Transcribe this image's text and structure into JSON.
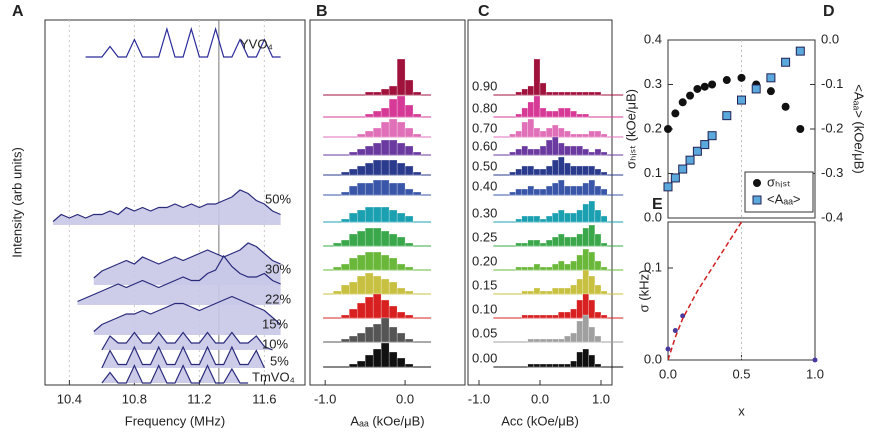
{
  "chart_data": [
    {
      "type": "line",
      "label": "A",
      "xlabel": "Frequency (MHz)",
      "ylabel": "Intensity (arb units)",
      "xlim": [
        10.25,
        11.85
      ],
      "xticks": [
        10.4,
        10.8,
        11.2,
        11.6
      ],
      "grid": true,
      "vline": 11.32,
      "fill": "#c8c8e8",
      "x": [
        10.3,
        10.35,
        10.4,
        10.45,
        10.5,
        10.55,
        10.6,
        10.65,
        10.7,
        10.75,
        10.8,
        10.85,
        10.9,
        10.95,
        11.0,
        11.05,
        11.1,
        11.15,
        11.2,
        11.25,
        11.3,
        11.35,
        11.4,
        11.45,
        11.5,
        11.55,
        11.6,
        11.65,
        11.7
      ],
      "series": [
        {
          "name": "YVO₄",
          "color": "#2a2a9a",
          "values": [
            null,
            null,
            null,
            null,
            0,
            0,
            0,
            3,
            0,
            0,
            5,
            0,
            0,
            0,
            8,
            0,
            0,
            8,
            0,
            0,
            8,
            0,
            0,
            5,
            0,
            0,
            5,
            0,
            0
          ]
        },
        {
          "name": "50%",
          "color": "#2a2a7a",
          "values": [
            1,
            3,
            2,
            3,
            2,
            3,
            3,
            4,
            3,
            5,
            4,
            5,
            4,
            5,
            5,
            6,
            5,
            6,
            5,
            6,
            6,
            7,
            8,
            10,
            9,
            7,
            6,
            4,
            3
          ]
        },
        {
          "name": "30%",
          "color": "#2a2a7a",
          "values": [
            null,
            null,
            null,
            null,
            null,
            2,
            4,
            5,
            6,
            7,
            6,
            8,
            7,
            6,
            7,
            8,
            7,
            8,
            9,
            10,
            9,
            8,
            9,
            10,
            12,
            11,
            9,
            7,
            6
          ]
        },
        {
          "name": "22%",
          "color": "#2a2a7a",
          "values": [
            null,
            null,
            null,
            1,
            2,
            3,
            4,
            5,
            6,
            5,
            6,
            7,
            6,
            5,
            6,
            7,
            8,
            7,
            7,
            9,
            10,
            14,
            11,
            9,
            8,
            8,
            9,
            7,
            6
          ]
        },
        {
          "name": "15%",
          "color": "#2a2a7a",
          "values": [
            null,
            null,
            null,
            null,
            null,
            1,
            3,
            4,
            5,
            6,
            6,
            7,
            6,
            7,
            8,
            9,
            9,
            8,
            7,
            8,
            9,
            10,
            11,
            10,
            9,
            8,
            7,
            5,
            3
          ]
        },
        {
          "name": "10%",
          "color": "#2a2a7a",
          "values": [
            null,
            null,
            null,
            null,
            null,
            null,
            0,
            4,
            2,
            2,
            5,
            2,
            2,
            5,
            2,
            2,
            5,
            2,
            2,
            5,
            2,
            2,
            5,
            2,
            2,
            4,
            1,
            0,
            null
          ]
        },
        {
          "name": "5%",
          "color": "#2a2a7a",
          "values": [
            null,
            null,
            null,
            null,
            null,
            null,
            0,
            5,
            1,
            1,
            6,
            1,
            1,
            6,
            1,
            1,
            6,
            1,
            1,
            6,
            1,
            1,
            6,
            1,
            1,
            5,
            0,
            null,
            null
          ]
        },
        {
          "name": "TmVO₄",
          "color": "#2a2a7a",
          "values": [
            null,
            null,
            null,
            null,
            null,
            null,
            0,
            3,
            0,
            0,
            5,
            0,
            0,
            5,
            0,
            0,
            5,
            0,
            0,
            5,
            0,
            0,
            4,
            0,
            0,
            null,
            null,
            null,
            null
          ]
        }
      ]
    },
    {
      "type": "histogram",
      "label": "B",
      "xlabel": "Aₐₐ (kOe/μB)",
      "xlim": [
        -1.19,
        0.75
      ],
      "xticks": [
        {
          "value": -1,
          "label": "-1.0"
        },
        {
          "value": 0,
          "label": "0.0"
        }
      ],
      "bins": [
        -0.9,
        -0.8,
        -0.7,
        -0.6,
        -0.5,
        -0.4,
        -0.3,
        -0.2,
        -0.1,
        0,
        0.1,
        0.2
      ],
      "series": [
        {
          "color": "#a0123c",
          "values": [
            0,
            0,
            0,
            0,
            1,
            1,
            2,
            3,
            12,
            5,
            1
          ]
        },
        {
          "color": "#d63a96",
          "values": [
            0,
            0,
            0,
            0,
            1,
            2,
            3,
            6,
            7,
            4,
            1
          ]
        },
        {
          "color": "#e070b8",
          "values": [
            0,
            0,
            0,
            1,
            2,
            3,
            5,
            6,
            5,
            3,
            1
          ]
        },
        {
          "color": "#6a3aa0",
          "values": [
            0,
            0,
            1,
            2,
            3,
            4,
            5,
            5,
            4,
            3,
            1
          ]
        },
        {
          "color": "#2a3a8c",
          "values": [
            0,
            1,
            2,
            3,
            4,
            5,
            5,
            5,
            4,
            3,
            1
          ]
        },
        {
          "color": "#3a56a8",
          "values": [
            0,
            1,
            3,
            4,
            4,
            5,
            5,
            4,
            4,
            2,
            1
          ]
        },
        {
          "color": "#1aa0b0",
          "values": [
            0,
            1,
            3,
            4,
            5,
            5,
            5,
            4,
            3,
            2,
            0
          ]
        },
        {
          "color": "#3aa84a",
          "values": [
            1,
            2,
            4,
            5,
            6,
            6,
            5,
            4,
            3,
            1,
            0
          ]
        },
        {
          "color": "#6ab83a",
          "values": [
            1,
            2,
            4,
            5,
            6,
            6,
            5,
            4,
            2,
            1,
            0
          ]
        },
        {
          "color": "#c8c040",
          "values": [
            1,
            3,
            4,
            6,
            7,
            6,
            5,
            4,
            2,
            1,
            0
          ]
        },
        {
          "color": "#d82020",
          "values": [
            0,
            1,
            3,
            5,
            7,
            8,
            6,
            4,
            2,
            1,
            0
          ]
        },
        {
          "color": "#555555",
          "values": [
            0,
            1,
            2,
            3,
            5,
            6,
            8,
            5,
            3,
            1,
            0
          ]
        },
        {
          "color": "#111111",
          "values": [
            0,
            0,
            1,
            2,
            4,
            6,
            8,
            5,
            3,
            1,
            0
          ]
        }
      ]
    },
    {
      "type": "histogram",
      "label": "C",
      "xlabel": "Acc (kOe/μB)",
      "xlim": [
        -1.18,
        1.18
      ],
      "xticks": [
        {
          "value": -1,
          "label": "-1.0"
        },
        {
          "value": 0,
          "label": "0.0"
        },
        {
          "value": 1,
          "label": "1.0"
        }
      ],
      "bins": [
        -0.6,
        -0.5,
        -0.4,
        -0.3,
        -0.2,
        -0.1,
        0,
        0.1,
        0.2,
        0.3,
        0.4,
        0.5,
        0.6,
        0.7,
        0.8,
        0.9,
        1.0,
        1.1,
        1.2
      ],
      "series": [
        {
          "name": "0.90",
          "color": "#a0123c",
          "values": [
            0,
            0,
            1,
            2,
            3,
            12,
            4,
            1,
            1,
            1,
            1,
            1,
            1,
            1,
            1,
            1,
            0,
            0
          ]
        },
        {
          "name": "0.80",
          "color": "#d63a96",
          "values": [
            0,
            0,
            1,
            3,
            5,
            7,
            3,
            2,
            2,
            3,
            3,
            2,
            1,
            1,
            0,
            0,
            0,
            0
          ]
        },
        {
          "name": "0.70",
          "color": "#e070b8",
          "values": [
            0,
            1,
            2,
            5,
            6,
            3,
            2,
            3,
            4,
            3,
            2,
            1,
            1,
            1,
            2,
            2,
            1,
            0
          ]
        },
        {
          "name": "0.60",
          "color": "#6a3aa0",
          "values": [
            0,
            1,
            2,
            3,
            2,
            2,
            3,
            5,
            6,
            4,
            3,
            3,
            3,
            2,
            1,
            2,
            1,
            0
          ]
        },
        {
          "name": "0.50",
          "color": "#2a3a8c",
          "values": [
            0,
            1,
            2,
            3,
            3,
            2,
            2,
            3,
            5,
            6,
            4,
            3,
            3,
            3,
            3,
            2,
            1,
            0
          ]
        },
        {
          "name": "0.40",
          "color": "#3a56a8",
          "values": [
            0,
            1,
            2,
            2,
            3,
            2,
            2,
            3,
            4,
            5,
            3,
            3,
            3,
            4,
            5,
            3,
            2,
            0
          ]
        },
        {
          "name": "0.30",
          "color": "#1aa0b0",
          "values": [
            0,
            0,
            1,
            2,
            2,
            2,
            1,
            2,
            3,
            4,
            3,
            3,
            4,
            6,
            7,
            4,
            2,
            0
          ]
        },
        {
          "name": "0.25",
          "color": "#3aa84a",
          "values": [
            0,
            0,
            1,
            1,
            2,
            2,
            1,
            2,
            3,
            4,
            3,
            3,
            4,
            6,
            7,
            4,
            1,
            0
          ]
        },
        {
          "name": "0.20",
          "color": "#6ab83a",
          "values": [
            0,
            0,
            1,
            1,
            1,
            2,
            1,
            1,
            2,
            3,
            2,
            3,
            5,
            7,
            6,
            3,
            1,
            0
          ]
        },
        {
          "name": "0.15",
          "color": "#c8c040",
          "values": [
            0,
            0,
            0,
            1,
            1,
            2,
            1,
            1,
            2,
            2,
            2,
            3,
            5,
            8,
            6,
            3,
            1,
            0
          ]
        },
        {
          "name": "0.10",
          "color": "#d82020",
          "values": [
            0,
            0,
            0,
            1,
            1,
            1,
            1,
            1,
            1,
            2,
            2,
            3,
            6,
            8,
            6,
            2,
            1,
            0
          ]
        },
        {
          "name": "0.05",
          "color": "#a0a0a0",
          "values": [
            0,
            0,
            0,
            0,
            1,
            1,
            1,
            1,
            1,
            1,
            2,
            3,
            7,
            9,
            5,
            2,
            0,
            0
          ]
        },
        {
          "name": "0.00",
          "color": "#111111",
          "values": [
            0,
            0,
            0,
            0,
            1,
            1,
            1,
            1,
            1,
            1,
            1,
            2,
            5,
            6,
            4,
            1,
            0,
            0
          ]
        }
      ]
    },
    {
      "type": "scatter",
      "label": "D",
      "ylabel": "σₕᵢₛₜ (kOe/μB)",
      "y2label": "<Aₐₐ> (kOe/μB)",
      "xlim": [
        0,
        1
      ],
      "vline": 0.5,
      "ylim": [
        0,
        0.4
      ],
      "yticks": [
        {
          "value": 0,
          "label": "0.0"
        },
        0.1,
        0.2,
        0.3,
        0.4
      ],
      "y2lim": [
        -0.4,
        0
      ],
      "y2ticks": [
        -0.4,
        -0.3,
        -0.2,
        -0.1,
        {
          "value": 0,
          "label": "0.0"
        }
      ],
      "legend": "lower right",
      "x": [
        0,
        0.05,
        0.1,
        0.15,
        0.2,
        0.25,
        0.3,
        0.4,
        0.5,
        0.6,
        0.7,
        0.8,
        0.9
      ],
      "series": [
        {
          "name": "σₕᵢₛₜ",
          "color": "#111111",
          "marker": "circle",
          "values": [
            0.2,
            0.235,
            0.26,
            0.275,
            0.29,
            0.295,
            0.3,
            0.31,
            0.315,
            0.3,
            0.285,
            0.25,
            0.2
          ]
        },
        {
          "name": "<Aₐₐ>",
          "color": "#5aa8dc",
          "marker": "square",
          "axis": "y2",
          "values": [
            -0.33,
            -0.31,
            -0.29,
            -0.27,
            -0.25,
            -0.235,
            -0.215,
            -0.17,
            -0.135,
            -0.11,
            -0.085,
            -0.05,
            -0.025
          ]
        }
      ]
    },
    {
      "type": "scatter",
      "label": "E",
      "xlabel": "x",
      "ylabel": "σ (kHz)",
      "xlim": [
        0,
        1
      ],
      "xticks": [
        {
          "value": 0,
          "label": "0.0"
        },
        0.5,
        {
          "value": 1,
          "label": "1.0"
        }
      ],
      "vline": 0.5,
      "ylim": [
        0,
        0.15
      ],
      "yticks": [
        {
          "value": 0,
          "label": "0.0"
        },
        0.1
      ],
      "x": [
        0,
        0.05,
        0.1,
        1.0
      ],
      "series": [
        {
          "color": "#4a3aa0",
          "marker": "circle",
          "values": [
            0.012,
            0.032,
            0.048,
            0
          ]
        },
        {
          "color": "#d02020",
          "marker": "dashed-line",
          "x": [
            0,
            0.05,
            0.1,
            0.2,
            0.3,
            0.4,
            0.5
          ],
          "values": [
            0,
            0.025,
            0.045,
            0.075,
            0.1,
            0.125,
            0.15
          ]
        }
      ]
    }
  ]
}
